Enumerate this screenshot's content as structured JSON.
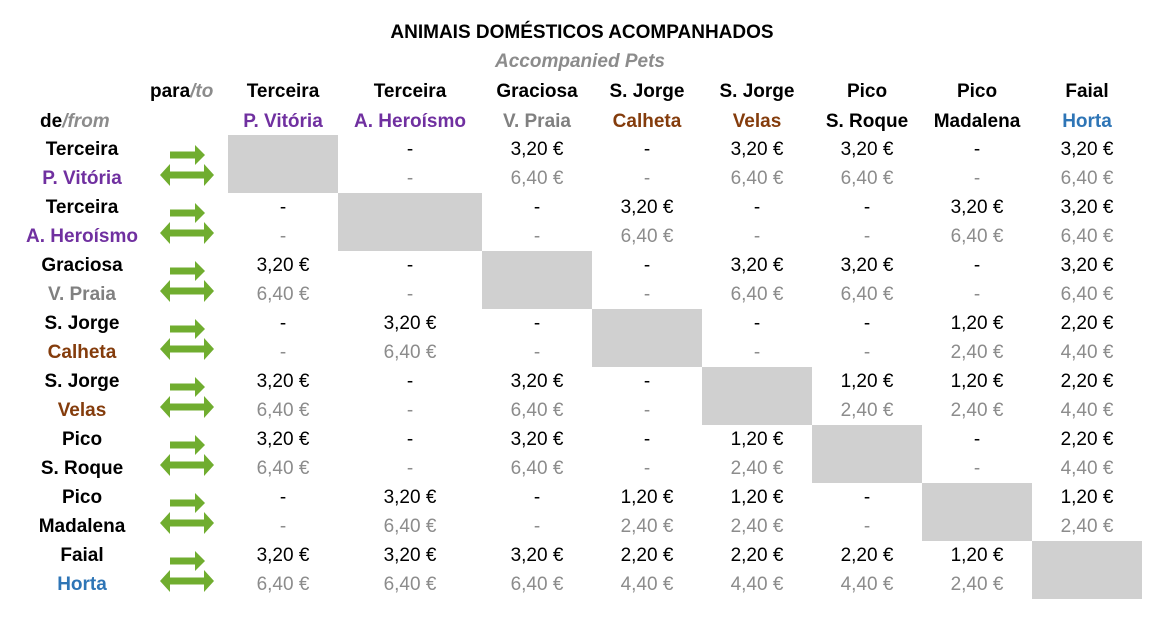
{
  "header": {
    "title": "ANIMAIS DOMÉSTICOS ACOMPANHADOS",
    "subtitle": "Accompanied Pets",
    "to_label": "para",
    "to_translation": "/to",
    "from_label": "de",
    "from_translation": "/from"
  },
  "table": {
    "columns": [
      {
        "island": "Terceira",
        "port": "P. Vitória",
        "color": "#7030a0"
      },
      {
        "island": "Terceira",
        "port": "A. Heroísmo",
        "color": "#7030a0"
      },
      {
        "island": "Graciosa",
        "port": "V. Praia",
        "color": "#808080"
      },
      {
        "island": "S. Jorge",
        "port": "Calheta",
        "color": "#843c0c"
      },
      {
        "island": "S. Jorge",
        "port": "Velas",
        "color": "#843c0c"
      },
      {
        "island": "Pico",
        "port": "S. Roque",
        "color": "#000000"
      },
      {
        "island": "Pico",
        "port": "Madalena",
        "color": "#000000"
      },
      {
        "island": "Faial",
        "port": "Horta",
        "color": "#2e75b6"
      }
    ],
    "rows": [
      {
        "island": "Terceira",
        "port": "P. Vitória",
        "color": "#7030a0",
        "one_way": [
          null,
          "-",
          "3,20 €",
          "-",
          "3,20 €",
          "3,20 €",
          "-",
          "3,20 €"
        ],
        "return": [
          null,
          "-",
          "6,40 €",
          "-",
          "6,40 €",
          "6,40 €",
          "-",
          "6,40 €"
        ]
      },
      {
        "island": "Terceira",
        "port": "A. Heroísmo",
        "color": "#7030a0",
        "one_way": [
          "-",
          null,
          "-",
          "3,20 €",
          "-",
          "-",
          "3,20 €",
          "3,20 €"
        ],
        "return": [
          "-",
          null,
          "-",
          "6,40 €",
          "-",
          "-",
          "6,40 €",
          "6,40 €"
        ]
      },
      {
        "island": "Graciosa",
        "port": "V. Praia",
        "color": "#808080",
        "one_way": [
          "3,20 €",
          "-",
          null,
          "-",
          "3,20 €",
          "3,20 €",
          "-",
          "3,20 €"
        ],
        "return": [
          "6,40 €",
          "-",
          null,
          "-",
          "6,40 €",
          "6,40 €",
          "-",
          "6,40 €"
        ]
      },
      {
        "island": "S. Jorge",
        "port": "Calheta",
        "color": "#843c0c",
        "one_way": [
          "-",
          "3,20 €",
          "-",
          null,
          "-",
          "-",
          "1,20 €",
          "2,20 €"
        ],
        "return": [
          "-",
          "6,40 €",
          "-",
          null,
          "-",
          "-",
          "2,40 €",
          "4,40 €"
        ]
      },
      {
        "island": "S. Jorge",
        "port": "Velas",
        "color": "#843c0c",
        "one_way": [
          "3,20 €",
          "-",
          "3,20 €",
          "-",
          null,
          "1,20 €",
          "1,20 €",
          "2,20 €"
        ],
        "return": [
          "6,40 €",
          "-",
          "6,40 €",
          "-",
          null,
          "2,40 €",
          "2,40 €",
          "4,40 €"
        ]
      },
      {
        "island": "Pico",
        "port": "S. Roque",
        "color": "#000000",
        "one_way": [
          "3,20 €",
          "-",
          "3,20 €",
          "-",
          "1,20 €",
          null,
          "-",
          "2,20 €"
        ],
        "return": [
          "6,40 €",
          "-",
          "6,40 €",
          "-",
          "2,40 €",
          null,
          "-",
          "4,40 €"
        ]
      },
      {
        "island": "Pico",
        "port": "Madalena",
        "color": "#000000",
        "one_way": [
          "-",
          "3,20 €",
          "-",
          "1,20 €",
          "1,20 €",
          "-",
          null,
          "1,20 €"
        ],
        "return": [
          "-",
          "6,40 €",
          "-",
          "2,40 €",
          "2,40 €",
          "-",
          null,
          "2,40 €"
        ]
      },
      {
        "island": "Faial",
        "port": "Horta",
        "color": "#2e75b6",
        "one_way": [
          "3,20 €",
          "3,20 €",
          "3,20 €",
          "2,20 €",
          "2,20 €",
          "2,20 €",
          "1,20 €",
          null
        ],
        "return": [
          "6,40 €",
          "6,40 €",
          "6,40 €",
          "4,40 €",
          "4,40 €",
          "4,40 €",
          "2,40 €",
          null
        ]
      }
    ]
  }
}
